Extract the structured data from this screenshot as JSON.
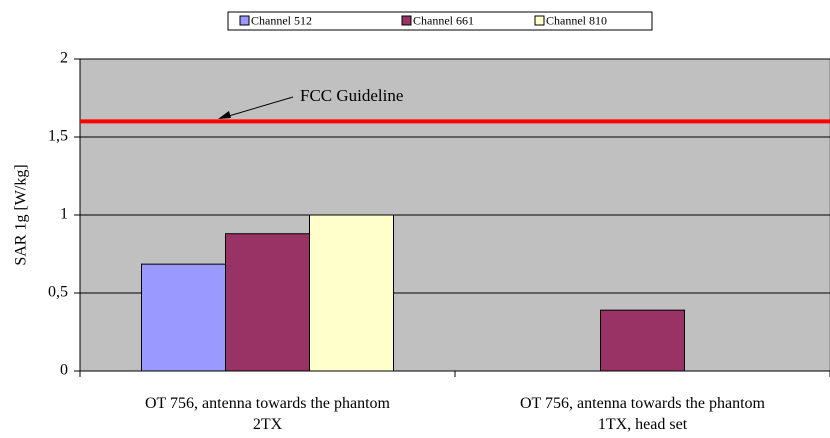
{
  "chart_data": {
    "type": "bar",
    "y_axis_label": "SAR 1g [W/kg]",
    "categories": [
      "OT 756, antenna towards the phantom\n2TX",
      "OT 756, antenna towards the phantom\n1TX, head set"
    ],
    "series": [
      {
        "name": "Channel 512",
        "color": "#9999ff",
        "values": [
          0.685,
          null
        ]
      },
      {
        "name": "Channel 661",
        "color": "#993366",
        "values": [
          0.88,
          0.39
        ]
      },
      {
        "name": "Channel 810",
        "color": "#ffffcc",
        "values": [
          1.0,
          null
        ]
      }
    ],
    "ylim": [
      0,
      2
    ],
    "yticks": [
      0,
      {
        "value": 0.5,
        "label": "0,5"
      },
      1,
      {
        "value": 1.5,
        "label": "1,5"
      },
      2
    ],
    "grid": true,
    "legend": "top",
    "reference_line": {
      "value": 1.6,
      "label": "FCC Guideline",
      "color": "#ff0000"
    }
  }
}
